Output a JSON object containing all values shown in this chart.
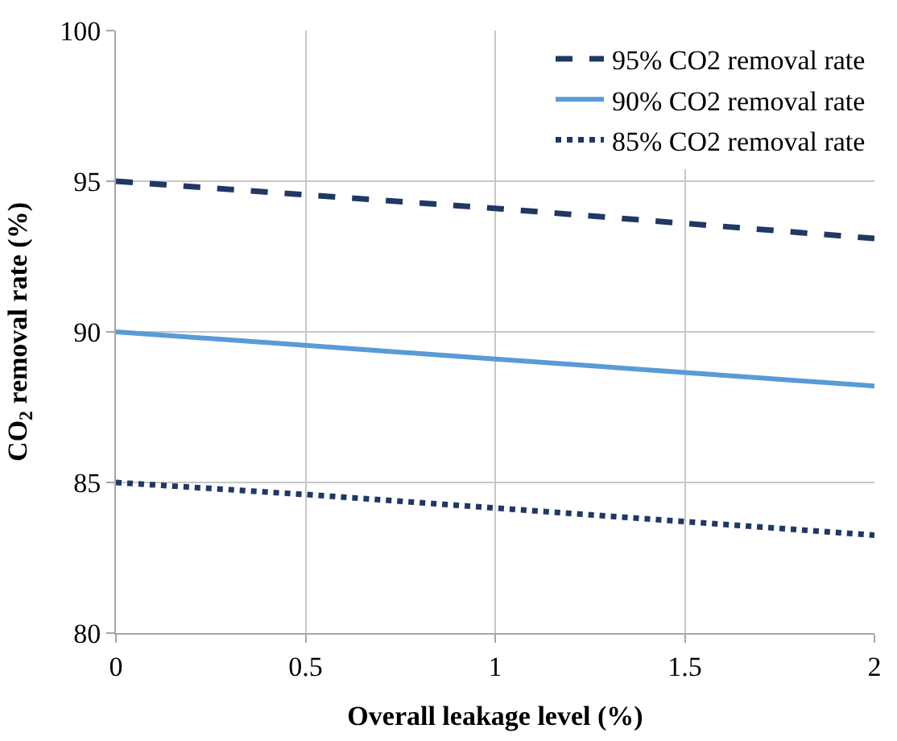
{
  "chart_data": {
    "type": "line",
    "xlabel": "Overall leakage level (%)",
    "ylabel": "CO$_{2}$ removal rate (%)",
    "x": [
      0,
      0.5,
      1,
      1.5,
      2
    ],
    "series": [
      {
        "name": "95% CO2 removal rate",
        "color": "#1f3864",
        "line_style": "dashed",
        "values": [
          95,
          94.55,
          94.1,
          93.6,
          93.1
        ]
      },
      {
        "name": "90% CO2 removal rate",
        "color": "#5b9bd5",
        "line_style": "solid",
        "values": [
          90,
          89.55,
          89.1,
          88.65,
          88.2
        ]
      },
      {
        "name": "85% CO2 removal rate",
        "color": "#1f3864",
        "line_style": "dotted",
        "values": [
          85,
          84.6,
          84.15,
          83.7,
          83.25
        ]
      }
    ],
    "xlim": [
      0,
      2
    ],
    "xticks": [
      0,
      0.5,
      1,
      1.5,
      2
    ],
    "ylim": [
      80,
      100
    ],
    "yticks": [
      80,
      85,
      90,
      95,
      100
    ],
    "grid": true,
    "legend": "top right",
    "marker": "none"
  }
}
